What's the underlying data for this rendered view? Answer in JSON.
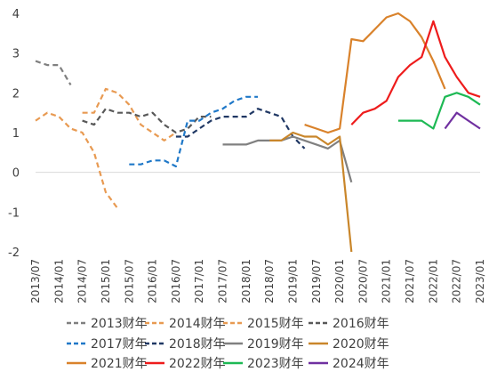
{
  "chart_data": {
    "type": "line",
    "title": "",
    "xlabel": "",
    "ylabel": "",
    "ylim": [
      -2,
      4
    ],
    "yticks": [
      -2,
      -1,
      0,
      1,
      2,
      3,
      4
    ],
    "xlim": [
      "2013/07",
      "2023/01"
    ],
    "xticks": [
      "2013/07",
      "2014/01",
      "2014/07",
      "2015/01",
      "2015/07",
      "2016/01",
      "2016/07",
      "2017/01",
      "2017/07",
      "2018/01",
      "2018/07",
      "2019/01",
      "2019/07",
      "2020/01",
      "2020/07",
      "2021/01",
      "2021/07",
      "2022/01",
      "2022/07",
      "2023/01"
    ],
    "grid": false,
    "legend_position": "bottom",
    "series": [
      {
        "name": "2013财年",
        "color": "#808080",
        "dash": "dashed",
        "x": [
          "2013/07",
          "2013/10",
          "2014/01",
          "2014/04"
        ],
        "y": [
          2.8,
          2.7,
          2.7,
          2.2
        ]
      },
      {
        "name": "2014财年",
        "color": "#E89A52",
        "dash": "dashed",
        "x": [
          "2013/07",
          "2013/10",
          "2014/01",
          "2014/04",
          "2014/07",
          "2014/10",
          "2015/01",
          "2015/04"
        ],
        "y": [
          1.3,
          1.5,
          1.4,
          1.1,
          1.0,
          0.5,
          -0.5,
          -0.9
        ]
      },
      {
        "name": "2015财年",
        "color": "#E89A52",
        "dash": "dashed",
        "x": [
          "2014/07",
          "2014/10",
          "2015/01",
          "2015/04",
          "2015/07",
          "2015/10",
          "2016/01",
          "2016/04",
          "2016/07"
        ],
        "y": [
          1.5,
          1.5,
          2.1,
          2.0,
          1.7,
          1.2,
          1.0,
          0.8,
          1.0
        ]
      },
      {
        "name": "2016财年",
        "color": "#595959",
        "dash": "dashed",
        "x": [
          "2014/07",
          "2014/10",
          "2015/01",
          "2015/04",
          "2015/07",
          "2015/10",
          "2016/01",
          "2016/04",
          "2016/07",
          "2016/10",
          "2017/01",
          "2017/04"
        ],
        "y": [
          1.3,
          1.2,
          1.6,
          1.5,
          1.5,
          1.4,
          1.5,
          1.2,
          1.0,
          1.1,
          1.4,
          1.4
        ]
      },
      {
        "name": "2017财年",
        "color": "#1F78C8",
        "dash": "dashed",
        "x": [
          "2015/07",
          "2015/10",
          "2016/01",
          "2016/04",
          "2016/07",
          "2016/10",
          "2017/01",
          "2017/04",
          "2017/07",
          "2017/10",
          "2018/01",
          "2018/04"
        ],
        "y": [
          0.2,
          0.2,
          0.3,
          0.3,
          0.15,
          1.3,
          1.3,
          1.5,
          1.6,
          1.8,
          1.9,
          1.9
        ]
      },
      {
        "name": "2018财年",
        "color": "#203864",
        "dash": "dashed",
        "x": [
          "2016/07",
          "2016/10",
          "2017/01",
          "2017/04",
          "2017/07",
          "2017/10",
          "2018/01",
          "2018/04",
          "2018/07",
          "2018/10",
          "2019/01",
          "2019/04"
        ],
        "y": [
          0.9,
          0.9,
          1.1,
          1.3,
          1.4,
          1.4,
          1.4,
          1.6,
          1.5,
          1.4,
          0.9,
          0.6
        ]
      },
      {
        "name": "2019财年",
        "color": "#808080",
        "dash": "solid",
        "x": [
          "2017/07",
          "2017/10",
          "2018/01",
          "2018/04",
          "2018/07",
          "2018/10",
          "2019/01",
          "2019/04",
          "2019/07",
          "2019/10",
          "2020/01",
          "2020/04"
        ],
        "y": [
          0.7,
          0.7,
          0.7,
          0.8,
          0.8,
          0.8,
          0.9,
          0.8,
          0.7,
          0.6,
          0.8,
          -0.25
        ]
      },
      {
        "name": "2020财年",
        "color": "#C9862A",
        "dash": "solid",
        "x": [
          "2018/07",
          "2018/10",
          "2019/01",
          "2019/04",
          "2019/07",
          "2019/10",
          "2020/01",
          "2020/04"
        ],
        "y": [
          0.8,
          0.8,
          1.0,
          0.9,
          0.9,
          0.7,
          0.9,
          -2.0
        ]
      },
      {
        "name": "2021财年",
        "color": "#D9822B",
        "dash": "solid",
        "x": [
          "2019/04",
          "2019/07",
          "2019/10",
          "2020/01",
          "2020/04",
          "2020/07",
          "2020/10",
          "2021/01",
          "2021/04",
          "2021/07",
          "2021/10",
          "2022/01",
          "2022/04"
        ],
        "y": [
          1.2,
          1.1,
          1.0,
          1.1,
          3.35,
          3.3,
          3.6,
          3.9,
          4.0,
          3.8,
          3.4,
          2.8,
          2.1
        ]
      },
      {
        "name": "2022财年",
        "color": "#EE1C1C",
        "dash": "solid",
        "x": [
          "2020/04",
          "2020/07",
          "2020/10",
          "2021/01",
          "2021/04",
          "2021/07",
          "2021/10",
          "2022/01",
          "2022/04",
          "2022/07",
          "2022/10",
          "2023/01"
        ],
        "y": [
          1.2,
          1.5,
          1.6,
          1.8,
          2.4,
          2.7,
          2.9,
          3.8,
          2.9,
          2.4,
          2.0,
          1.9
        ]
      },
      {
        "name": "2023财年",
        "color": "#1DB954",
        "dash": "solid",
        "x": [
          "2021/04",
          "2021/07",
          "2021/10",
          "2022/01",
          "2022/04",
          "2022/07",
          "2022/10",
          "2023/01"
        ],
        "y": [
          1.3,
          1.3,
          1.3,
          1.1,
          1.9,
          2.0,
          1.9,
          1.7
        ]
      },
      {
        "name": "2024财年",
        "color": "#7030A0",
        "dash": "solid",
        "x": [
          "2022/04",
          "2022/07",
          "2022/10",
          "2023/01"
        ],
        "y": [
          1.1,
          1.5,
          1.3,
          1.1
        ]
      }
    ]
  }
}
